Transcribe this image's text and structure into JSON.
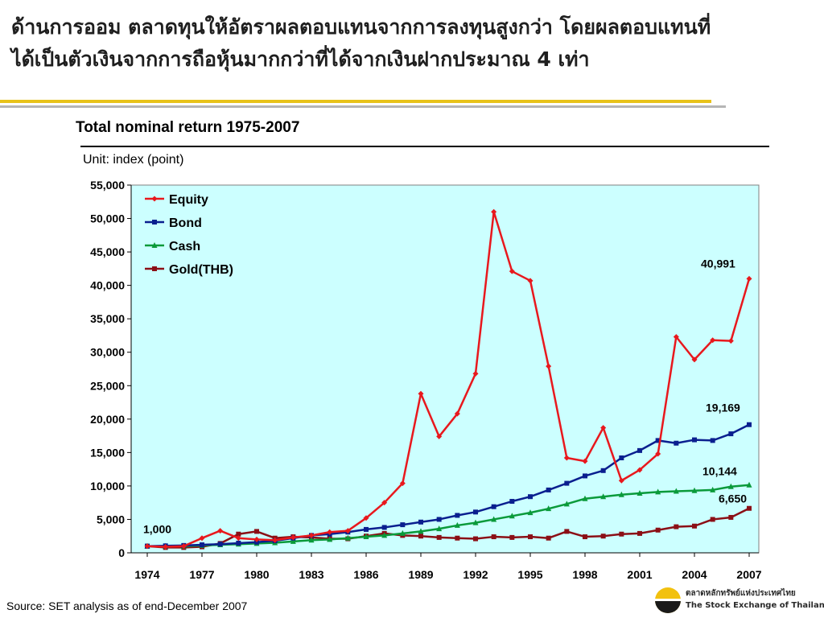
{
  "headline": {
    "line1": "ด้านการออม ตลาดทุนให้อัตราผลตอบแทนจากการลงทุนสูงกว่า โดยผลตอบแทนที่",
    "line2": "ได้เป็นตัวเงินจากการถือหุ้นมากกว่าที่ได้จากเงินฝากประมาณ  4 เท่า"
  },
  "source_note": "Source: SET analysis as of end-December 2007",
  "logo": {
    "line1": "ตลาดหลักทรัพย์แห่งประเทศไทย",
    "line2": "The Stock Exchange of Thailand"
  },
  "colors": {
    "equity": "#e8181d",
    "bond": "#0a1f8f",
    "cash": "#0a9a3a",
    "gold": "#8b0f16",
    "plot_bg": "#ccffff",
    "accent": "#e8c21a"
  },
  "chart_data": {
    "type": "line",
    "title": "Total nominal return 1975-2007",
    "unit_label": "Unit: index (point)",
    "ylim": [
      0,
      55000
    ],
    "xlim": [
      1974,
      2007
    ],
    "y_ticks": [
      "0",
      "5,000",
      "10,000",
      "15,000",
      "20,000",
      "25,000",
      "30,000",
      "35,000",
      "40,000",
      "45,000",
      "50,000",
      "55,000"
    ],
    "x_ticks": [
      "1974",
      "1977",
      "1980",
      "1983",
      "1986",
      "1989",
      "1992",
      "1995",
      "1998",
      "2001",
      "2004",
      "2007"
    ],
    "legend_position": "top-left",
    "x": [
      1974,
      1975,
      1976,
      1977,
      1978,
      1979,
      1980,
      1981,
      1982,
      1983,
      1984,
      1985,
      1986,
      1987,
      1988,
      1989,
      1990,
      1991,
      1992,
      1993,
      1994,
      1995,
      1996,
      1997,
      1998,
      1999,
      2000,
      2001,
      2002,
      2003,
      2004,
      2005,
      2006,
      2007
    ],
    "series": [
      {
        "name": "Equity",
        "color_key": "equity",
        "marker": "diamond",
        "values": [
          1000,
          900,
          1000,
          2200,
          3300,
          2200,
          2000,
          1900,
          2300,
          2600,
          3100,
          3300,
          5200,
          7500,
          10400,
          23800,
          17400,
          20800,
          26800,
          51000,
          42100,
          40700,
          27900,
          14200,
          13700,
          18700,
          10800,
          12400,
          14800,
          32300,
          28900,
          31800,
          31700,
          40991
        ]
      },
      {
        "name": "Bond",
        "color_key": "bond",
        "marker": "square",
        "values": [
          1000,
          1050,
          1100,
          1200,
          1300,
          1450,
          1600,
          1800,
          2200,
          2600,
          2800,
          3100,
          3500,
          3800,
          4200,
          4600,
          5000,
          5600,
          6100,
          6900,
          7700,
          8400,
          9400,
          10400,
          11500,
          12300,
          14200,
          15300,
          16800,
          16400,
          16900,
          16800,
          17800,
          19169
        ]
      },
      {
        "name": "Cash",
        "color_key": "cash",
        "marker": "triangle",
        "values": [
          1000,
          1000,
          1000,
          1100,
          1200,
          1300,
          1400,
          1500,
          1700,
          1900,
          2000,
          2200,
          2400,
          2600,
          2900,
          3200,
          3600,
          4100,
          4500,
          5000,
          5500,
          6000,
          6600,
          7300,
          8100,
          8400,
          8700,
          8900,
          9100,
          9200,
          9300,
          9400,
          9900,
          10144
        ]
      },
      {
        "name": "Gold(THB)",
        "color_key": "gold",
        "marker": "square",
        "values": [
          1000,
          800,
          800,
          900,
          1400,
          2800,
          3200,
          2200,
          2400,
          2300,
          2100,
          2100,
          2500,
          2900,
          2600,
          2500,
          2300,
          2200,
          2100,
          2400,
          2300,
          2400,
          2200,
          3200,
          2400,
          2500,
          2800,
          2900,
          3400,
          3900,
          4000,
          5000,
          5300,
          6650
        ]
      }
    ],
    "annotations": [
      {
        "text": "1,000",
        "x": 1974,
        "y": 1000
      },
      {
        "text": "40,991",
        "x": 2007,
        "y": 40991
      },
      {
        "text": "19,169",
        "x": 2007,
        "y": 19169
      },
      {
        "text": "10,144",
        "x": 2007,
        "y": 10144
      },
      {
        "text": "6,650",
        "x": 2007,
        "y": 6650
      }
    ]
  }
}
